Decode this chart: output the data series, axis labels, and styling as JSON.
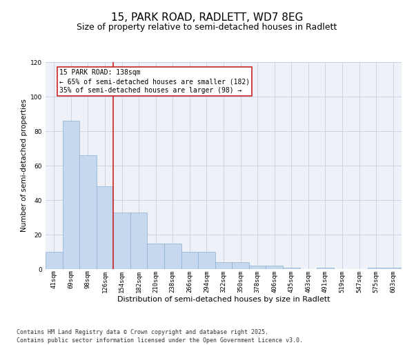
{
  "title1": "15, PARK ROAD, RADLETT, WD7 8EG",
  "title2": "Size of property relative to semi-detached houses in Radlett",
  "xlabel": "Distribution of semi-detached houses by size in Radlett",
  "ylabel": "Number of semi-detached properties",
  "categories": [
    "41sqm",
    "69sqm",
    "98sqm",
    "126sqm",
    "154sqm",
    "182sqm",
    "210sqm",
    "238sqm",
    "266sqm",
    "294sqm",
    "322sqm",
    "350sqm",
    "378sqm",
    "406sqm",
    "435sqm",
    "463sqm",
    "491sqm",
    "519sqm",
    "547sqm",
    "575sqm",
    "603sqm"
  ],
  "values": [
    10,
    86,
    66,
    48,
    33,
    33,
    15,
    15,
    10,
    10,
    4,
    4,
    2,
    2,
    1,
    0,
    1,
    0,
    0,
    1,
    1
  ],
  "bar_color": "#c5d8ee",
  "bar_edge_color": "#8ab0d0",
  "vline_index": 3,
  "vline_color": "#cc2222",
  "annotation_text": "15 PARK ROAD: 138sqm\n← 65% of semi-detached houses are smaller (182)\n35% of semi-detached houses are larger (98) →",
  "annotation_box_color": "#cc2222",
  "ylim": [
    0,
    120
  ],
  "yticks": [
    0,
    20,
    40,
    60,
    80,
    100,
    120
  ],
  "grid_color": "#c8d4e4",
  "bg_color": "#eef2f8",
  "footer": "Contains HM Land Registry data © Crown copyright and database right 2025.\nContains public sector information licensed under the Open Government Licence v3.0.",
  "title1_fontsize": 11,
  "title2_fontsize": 9,
  "xlabel_fontsize": 8,
  "ylabel_fontsize": 7.5,
  "tick_fontsize": 6.5,
  "footer_fontsize": 6,
  "ann_fontsize": 7
}
